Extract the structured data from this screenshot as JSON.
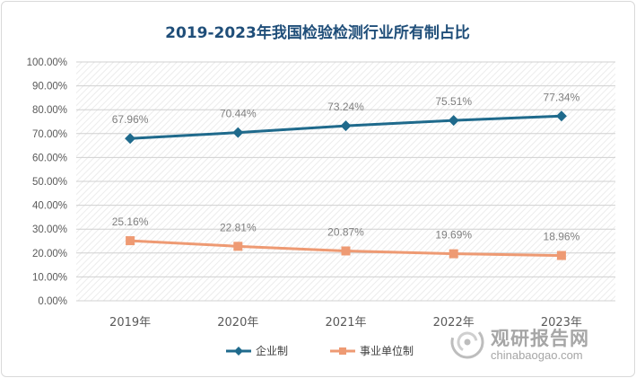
{
  "chart_data": {
    "type": "line",
    "title": "2019-2023年我国检验检测行业所有制占比",
    "categories": [
      "2019年",
      "2020年",
      "2021年",
      "2022年",
      "2023年"
    ],
    "series": [
      {
        "name": "企业制",
        "values": [
          67.96,
          70.44,
          73.24,
          75.51,
          77.34
        ],
        "labels": [
          "67.96%",
          "70.44%",
          "73.24%",
          "75.51%",
          "77.34%"
        ],
        "color": "#1f6a8c",
        "marker": "diamond"
      },
      {
        "name": "事业单位制",
        "values": [
          25.16,
          22.81,
          20.87,
          19.69,
          18.96
        ],
        "labels": [
          "25.16%",
          "22.81%",
          "20.87%",
          "19.69%",
          "18.96%"
        ],
        "color": "#ee9a73",
        "marker": "square"
      }
    ],
    "ylim": [
      0,
      100
    ],
    "yticks": [
      "0.00%",
      "10.00%",
      "20.00%",
      "30.00%",
      "40.00%",
      "50.00%",
      "60.00%",
      "70.00%",
      "80.00%",
      "90.00%",
      "100.00%"
    ],
    "xlabel": "",
    "ylabel": "",
    "grid": true,
    "legend": "bottom-center"
  },
  "watermark": {
    "name": "观研报告网",
    "url": "chinabaogao.com",
    "logo_icon": "swirl-logo-icon"
  }
}
